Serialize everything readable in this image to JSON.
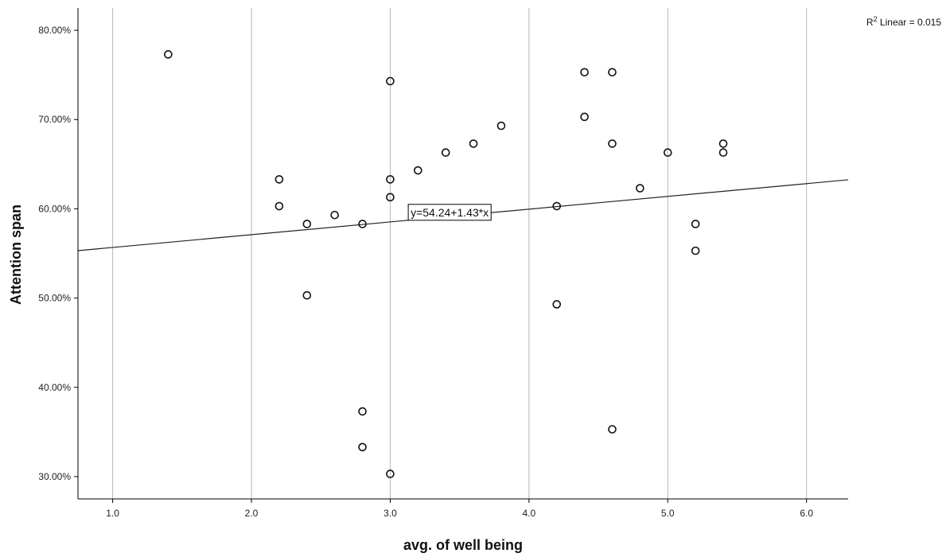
{
  "chart_data": {
    "type": "scatter",
    "xlabel": "avg. of well being",
    "ylabel": "Attention span",
    "xlim": [
      0.75,
      6.3
    ],
    "ylim": [
      27.5,
      82.5
    ],
    "x_ticks": [
      1.0,
      2.0,
      3.0,
      4.0,
      5.0,
      6.0
    ],
    "x_tick_labels": [
      "1.0",
      "2.0",
      "3.0",
      "4.0",
      "5.0",
      "6.0"
    ],
    "y_ticks": [
      30,
      40,
      50,
      60,
      70,
      80
    ],
    "y_tick_labels": [
      "30.00%",
      "40.00%",
      "50.00%",
      "60.00%",
      "70.00%",
      "80.00%"
    ],
    "grid": "vertical",
    "points": [
      {
        "x": 1.4,
        "y": 77.3
      },
      {
        "x": 2.2,
        "y": 63.3
      },
      {
        "x": 2.2,
        "y": 60.3
      },
      {
        "x": 2.4,
        "y": 58.3
      },
      {
        "x": 2.4,
        "y": 50.3
      },
      {
        "x": 2.6,
        "y": 59.3
      },
      {
        "x": 2.8,
        "y": 58.3
      },
      {
        "x": 2.8,
        "y": 37.3
      },
      {
        "x": 2.8,
        "y": 33.3
      },
      {
        "x": 3.0,
        "y": 74.3
      },
      {
        "x": 3.0,
        "y": 63.3
      },
      {
        "x": 3.0,
        "y": 61.3
      },
      {
        "x": 3.0,
        "y": 30.3
      },
      {
        "x": 3.2,
        "y": 64.3
      },
      {
        "x": 3.4,
        "y": 66.3
      },
      {
        "x": 3.6,
        "y": 67.3
      },
      {
        "x": 3.8,
        "y": 69.3
      },
      {
        "x": 4.2,
        "y": 60.3
      },
      {
        "x": 4.2,
        "y": 49.3
      },
      {
        "x": 4.4,
        "y": 75.3
      },
      {
        "x": 4.4,
        "y": 70.3
      },
      {
        "x": 4.6,
        "y": 75.3
      },
      {
        "x": 4.6,
        "y": 67.3
      },
      {
        "x": 4.6,
        "y": 35.3
      },
      {
        "x": 4.8,
        "y": 62.3
      },
      {
        "x": 5.0,
        "y": 66.3
      },
      {
        "x": 5.2,
        "y": 58.3
      },
      {
        "x": 5.2,
        "y": 55.3
      },
      {
        "x": 5.4,
        "y": 67.3
      },
      {
        "x": 5.4,
        "y": 66.3
      }
    ],
    "fit_line": {
      "intercept": 54.24,
      "slope": 1.43
    },
    "equation_label": "y=54.24+1.43*x",
    "r2_label": {
      "prefix": "R",
      "superscript": "2",
      "text": " Linear = 0.015"
    }
  }
}
